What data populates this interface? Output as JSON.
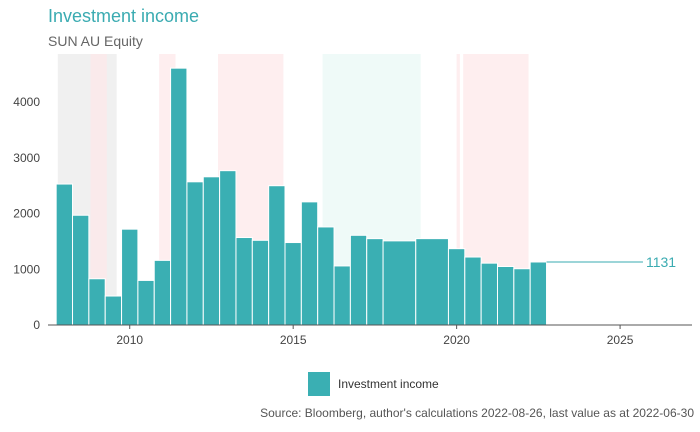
{
  "title": "Investment income",
  "subtitle": "SUN AU Equity",
  "source": "Source: Bloomberg, author's calculations 2022-08-26, last value as at 2022-06-30",
  "colors": {
    "bar": "#3aafb3",
    "bar_edge": "#ffffff",
    "accent_text": "#3aabb1",
    "band_grey": "#eeeeee",
    "band_red": "#fde8ea",
    "band_green": "#edf9f7"
  },
  "chart_data": {
    "type": "bar",
    "title": "Investment income",
    "subtitle": "SUN AU Equity",
    "xlabel": "",
    "ylabel": "",
    "xlim": [
      2007.5,
      2027.2
    ],
    "ylim": [
      0,
      4900
    ],
    "xticks": [
      2010,
      2015,
      2020,
      2025
    ],
    "yticks": [
      0,
      1000,
      2000,
      3000,
      4000
    ],
    "grid": false,
    "legend": "bottom-center",
    "series": [
      {
        "name": "Investment income",
        "bars": [
          {
            "start": 2007.75,
            "end": 2008.25,
            "value": 2530
          },
          {
            "start": 2008.25,
            "end": 2008.75,
            "value": 1970
          },
          {
            "start": 2008.75,
            "end": 2009.25,
            "value": 830
          },
          {
            "start": 2009.25,
            "end": 2009.75,
            "value": 520
          },
          {
            "start": 2009.75,
            "end": 2010.25,
            "value": 1720
          },
          {
            "start": 2010.25,
            "end": 2010.75,
            "value": 800
          },
          {
            "start": 2010.75,
            "end": 2011.25,
            "value": 1160
          },
          {
            "start": 2011.25,
            "end": 2011.75,
            "value": 4610
          },
          {
            "start": 2011.75,
            "end": 2012.25,
            "value": 2570
          },
          {
            "start": 2012.25,
            "end": 2012.75,
            "value": 2660
          },
          {
            "start": 2012.75,
            "end": 2013.25,
            "value": 2770
          },
          {
            "start": 2013.25,
            "end": 2013.75,
            "value": 1570
          },
          {
            "start": 2013.75,
            "end": 2014.25,
            "value": 1520
          },
          {
            "start": 2014.25,
            "end": 2014.75,
            "value": 2500
          },
          {
            "start": 2014.75,
            "end": 2015.25,
            "value": 1480
          },
          {
            "start": 2015.25,
            "end": 2015.75,
            "value": 2210
          },
          {
            "start": 2015.75,
            "end": 2016.25,
            "value": 1760
          },
          {
            "start": 2016.25,
            "end": 2016.75,
            "value": 1060
          },
          {
            "start": 2016.75,
            "end": 2017.25,
            "value": 1610
          },
          {
            "start": 2017.25,
            "end": 2017.75,
            "value": 1550
          },
          {
            "start": 2017.75,
            "end": 2018.75,
            "value": 1510
          },
          {
            "start": 2018.75,
            "end": 2019.75,
            "value": 1550
          },
          {
            "start": 2019.75,
            "end": 2020.25,
            "value": 1370
          },
          {
            "start": 2020.25,
            "end": 2020.75,
            "value": 1220
          },
          {
            "start": 2020.75,
            "end": 2021.25,
            "value": 1110
          },
          {
            "start": 2021.25,
            "end": 2021.75,
            "value": 1050
          },
          {
            "start": 2021.75,
            "end": 2022.25,
            "value": 1010
          },
          {
            "start": 2022.25,
            "end": 2022.75,
            "value": 1131
          }
        ]
      }
    ],
    "last_value": {
      "from": 2022.75,
      "to": 2025.7,
      "value": 1131,
      "label": "1131"
    },
    "shaded_periods": [
      {
        "start": 2007.8,
        "end": 2009.6,
        "color": "grey"
      },
      {
        "start": 2008.8,
        "end": 2009.3,
        "color": "red"
      },
      {
        "start": 2010.9,
        "end": 2011.4,
        "color": "red"
      },
      {
        "start": 2012.7,
        "end": 2014.7,
        "color": "red"
      },
      {
        "start": 2015.9,
        "end": 2018.9,
        "color": "green"
      },
      {
        "start": 2020.0,
        "end": 2020.1,
        "color": "red"
      },
      {
        "start": 2020.2,
        "end": 2022.2,
        "color": "red"
      }
    ]
  }
}
